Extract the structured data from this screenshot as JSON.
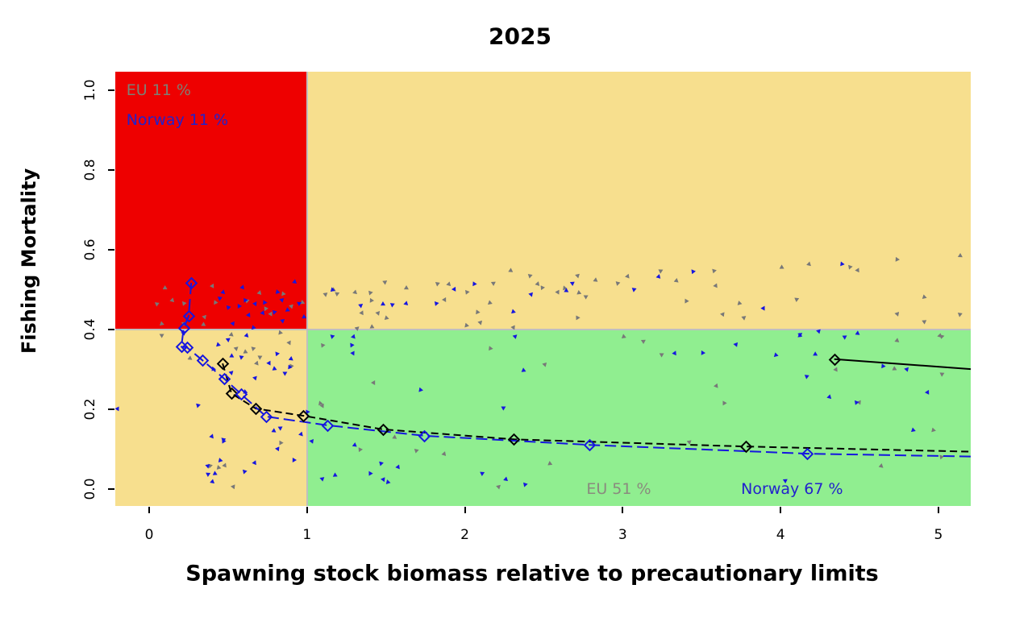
{
  "chart_title": "2025",
  "chart_data": {
    "type": "scatter",
    "title": "2025",
    "xlabel": "Spawning stock biomass relative to precautionary limits",
    "ylabel": "Fishing Mortality",
    "xlim": [
      -0.215,
      5.205
    ],
    "ylim": [
      -0.042,
      1.046
    ],
    "xticks": [
      0,
      1,
      2,
      3,
      4,
      5
    ],
    "xtick_labels": [
      "0",
      "1",
      "2",
      "3",
      "4",
      "5"
    ],
    "yticks": [
      0.0,
      0.2,
      0.4,
      0.6,
      0.8,
      1.0
    ],
    "ytick_labels": [
      "0.0",
      "0.2",
      "0.4",
      "0.6",
      "0.8",
      "1.0"
    ],
    "grid": false,
    "legend_position": "none",
    "thresholds": {
      "x": 1.0,
      "y": 0.4
    },
    "region_colors": {
      "top_left": "#EE0000",
      "top_right": "#F7DF8E",
      "bottom_left": "#F7DF8E",
      "bottom_right": "#90EE90",
      "boundary_line": "#BFBFBF"
    },
    "annotations": [
      {
        "text": "EU 11 %",
        "color": "#7F7F74",
        "x": -0.145,
        "y": 1.0,
        "anchor": "left"
      },
      {
        "text": "Norway 11 %",
        "color": "#2222CC",
        "x": -0.145,
        "y": 0.925,
        "anchor": "left"
      },
      {
        "text": "EU 51 %",
        "color": "#8A8A7E",
        "x": 2.77,
        "y": 0.0,
        "anchor": "left"
      },
      {
        "text": "Norway 67 %",
        "color": "#2222CC",
        "x": 3.75,
        "y": 0.0,
        "anchor": "left"
      }
    ],
    "series": [
      {
        "name": "EU simulations",
        "type": "points",
        "color": "#787878",
        "points": [
          [
            0.1,
            0.505
          ],
          [
            0.05,
            0.465
          ],
          [
            0.15,
            0.473
          ],
          [
            0.22,
            0.465
          ],
          [
            0.4,
            0.509
          ],
          [
            0.42,
            0.469
          ],
          [
            0.35,
            0.432
          ],
          [
            0.08,
            0.414
          ],
          [
            0.22,
            0.414
          ],
          [
            0.34,
            0.412
          ],
          [
            0.62,
            0.473
          ],
          [
            0.7,
            0.493
          ],
          [
            0.74,
            0.452
          ],
          [
            0.77,
            0.438
          ],
          [
            0.85,
            0.489
          ],
          [
            0.9,
            0.459
          ],
          [
            0.97,
            0.469
          ],
          [
            0.08,
            0.386
          ],
          [
            0.26,
            0.328
          ],
          [
            0.66,
            0.352
          ],
          [
            0.68,
            0.315
          ],
          [
            0.9,
            0.31
          ],
          [
            0.89,
            0.368
          ],
          [
            0.83,
            0.392
          ],
          [
            0.55,
            0.352
          ],
          [
            0.61,
            0.343
          ],
          [
            0.7,
            0.331
          ],
          [
            0.52,
            0.388
          ],
          [
            0.39,
            0.059
          ],
          [
            0.48,
            0.059
          ],
          [
            0.83,
            0.115
          ],
          [
            0.53,
            0.006
          ],
          [
            0.44,
            0.055
          ],
          [
            1.12,
            0.489
          ],
          [
            1.17,
            0.499
          ],
          [
            1.19,
            0.489
          ],
          [
            1.3,
            0.493
          ],
          [
            1.4,
            0.493
          ],
          [
            1.35,
            0.442
          ],
          [
            1.41,
            0.473
          ],
          [
            1.45,
            0.44
          ],
          [
            1.5,
            0.428
          ],
          [
            1.49,
            0.519
          ],
          [
            1.63,
            0.505
          ],
          [
            1.83,
            0.515
          ],
          [
            1.9,
            0.513
          ],
          [
            2.01,
            0.493
          ],
          [
            1.87,
            0.475
          ],
          [
            2.08,
            0.444
          ],
          [
            2.1,
            0.418
          ],
          [
            2.16,
            0.467
          ],
          [
            2.18,
            0.515
          ],
          [
            2.29,
            0.547
          ],
          [
            2.41,
            0.535
          ],
          [
            2.46,
            0.515
          ],
          [
            2.49,
            0.505
          ],
          [
            2.59,
            0.493
          ],
          [
            2.63,
            0.503
          ],
          [
            2.71,
            0.535
          ],
          [
            2.72,
            0.493
          ],
          [
            2.77,
            0.483
          ],
          [
            2.83,
            0.523
          ],
          [
            2.97,
            0.515
          ],
          [
            3.03,
            0.533
          ],
          [
            2.71,
            0.43
          ],
          [
            2.31,
            0.406
          ],
          [
            2.01,
            0.41
          ],
          [
            1.32,
            0.402
          ],
          [
            1.41,
            0.406
          ],
          [
            3.24,
            0.547
          ],
          [
            3.34,
            0.523
          ],
          [
            3.58,
            0.547
          ],
          [
            3.59,
            0.509
          ],
          [
            3.4,
            0.471
          ],
          [
            3.63,
            0.438
          ],
          [
            3.74,
            0.467
          ],
          [
            3.77,
            0.43
          ],
          [
            4.01,
            0.556
          ],
          [
            4.1,
            0.475
          ],
          [
            4.18,
            0.564
          ],
          [
            4.44,
            0.558
          ],
          [
            4.49,
            0.549
          ],
          [
            4.74,
            0.576
          ],
          [
            4.74,
            0.438
          ],
          [
            4.91,
            0.481
          ],
          [
            4.91,
            0.42
          ],
          [
            5.14,
            0.586
          ],
          [
            5.14,
            0.438
          ],
          [
            5.01,
            0.384
          ],
          [
            1.1,
            0.36
          ],
          [
            1.42,
            0.267
          ],
          [
            2.16,
            0.354
          ],
          [
            2.51,
            0.313
          ],
          [
            3.01,
            0.382
          ],
          [
            3.13,
            0.37
          ],
          [
            1.55,
            0.129
          ],
          [
            1.69,
            0.097
          ],
          [
            1.87,
            0.089
          ],
          [
            1.34,
            0.099
          ],
          [
            1.1,
            0.208
          ],
          [
            1.08,
            0.214
          ],
          [
            2.21,
            0.006
          ],
          [
            2.54,
            0.065
          ],
          [
            3.25,
            0.337
          ],
          [
            4.74,
            0.372
          ],
          [
            5.02,
            0.382
          ],
          [
            3.59,
            0.259
          ],
          [
            3.64,
            0.216
          ],
          [
            4.5,
            0.218
          ],
          [
            4.97,
            0.147
          ],
          [
            3.42,
            0.117
          ],
          [
            4.72,
            0.301
          ],
          [
            5.02,
            0.289
          ],
          [
            4.64,
            0.059
          ],
          [
            5.02,
            0.081
          ],
          [
            4.35,
            0.3
          ]
        ]
      },
      {
        "name": "Norway simulations",
        "type": "points",
        "color": "#1616DF",
        "points": [
          [
            0.59,
            0.505
          ],
          [
            0.61,
            0.473
          ],
          [
            0.67,
            0.465
          ],
          [
            0.81,
            0.495
          ],
          [
            0.84,
            0.475
          ],
          [
            0.88,
            0.449
          ],
          [
            0.95,
            0.465
          ],
          [
            0.92,
            0.519
          ],
          [
            0.79,
            0.444
          ],
          [
            0.72,
            0.442
          ],
          [
            0.57,
            0.459
          ],
          [
            0.53,
            0.414
          ],
          [
            0.66,
            0.404
          ],
          [
            0.84,
            0.422
          ],
          [
            0.98,
            0.432
          ],
          [
            0.45,
            0.479
          ],
          [
            0.47,
            0.493
          ],
          [
            0.5,
            0.455
          ],
          [
            0.63,
            0.437
          ],
          [
            0.73,
            0.469
          ],
          [
            0.22,
            0.392
          ],
          [
            0.44,
            0.362
          ],
          [
            0.5,
            0.374
          ],
          [
            0.52,
            0.333
          ],
          [
            0.58,
            0.331
          ],
          [
            0.62,
            0.386
          ],
          [
            0.81,
            0.339
          ],
          [
            0.76,
            0.315
          ],
          [
            0.89,
            0.305
          ],
          [
            0.67,
            0.279
          ],
          [
            0.61,
            0.244
          ],
          [
            0.83,
            0.154
          ],
          [
            0.79,
            0.145
          ],
          [
            0.47,
            0.123
          ],
          [
            0.96,
            0.137
          ],
          [
            1.0,
            0.194
          ],
          [
            -0.2,
            0.202
          ],
          [
            0.41,
            0.301
          ],
          [
            0.52,
            0.291
          ],
          [
            0.79,
            0.301
          ],
          [
            0.86,
            0.291
          ],
          [
            0.9,
            0.327
          ],
          [
            0.31,
            0.21
          ],
          [
            0.4,
            0.131
          ],
          [
            0.47,
            0.119
          ],
          [
            0.81,
            0.101
          ],
          [
            0.45,
            0.073
          ],
          [
            0.37,
            0.059
          ],
          [
            0.42,
            0.038
          ],
          [
            0.37,
            0.036
          ],
          [
            0.4,
            0.018
          ],
          [
            0.6,
            0.044
          ],
          [
            0.67,
            0.067
          ],
          [
            0.92,
            0.073
          ],
          [
            1.03,
            0.119
          ],
          [
            1.16,
            0.499
          ],
          [
            1.34,
            0.461
          ],
          [
            1.48,
            0.465
          ],
          [
            1.54,
            0.463
          ],
          [
            1.63,
            0.465
          ],
          [
            1.82,
            0.465
          ],
          [
            1.93,
            0.501
          ],
          [
            2.06,
            0.515
          ],
          [
            2.42,
            0.489
          ],
          [
            2.31,
            0.444
          ],
          [
            2.68,
            0.515
          ],
          [
            2.64,
            0.497
          ],
          [
            3.07,
            0.501
          ],
          [
            3.23,
            0.533
          ],
          [
            3.45,
            0.545
          ],
          [
            3.89,
            0.452
          ],
          [
            4.39,
            0.564
          ],
          [
            4.24,
            0.396
          ],
          [
            4.12,
            0.386
          ],
          [
            4.41,
            0.382
          ],
          [
            4.49,
            0.39
          ],
          [
            1.16,
            0.382
          ],
          [
            1.29,
            0.382
          ],
          [
            1.28,
            0.362
          ],
          [
            1.29,
            0.342
          ],
          [
            1.72,
            0.248
          ],
          [
            2.32,
            0.382
          ],
          [
            2.37,
            0.297
          ],
          [
            2.24,
            0.204
          ],
          [
            1.3,
            0.111
          ],
          [
            1.47,
            0.065
          ],
          [
            1.58,
            0.055
          ],
          [
            1.4,
            0.038
          ],
          [
            1.48,
            0.024
          ],
          [
            1.51,
            0.018
          ],
          [
            1.1,
            0.026
          ],
          [
            1.18,
            0.034
          ],
          [
            2.11,
            0.038
          ],
          [
            2.26,
            0.024
          ],
          [
            2.38,
            0.012
          ],
          [
            3.33,
            0.341
          ],
          [
            3.51,
            0.341
          ],
          [
            3.72,
            0.362
          ],
          [
            3.97,
            0.335
          ],
          [
            4.12,
            0.388
          ],
          [
            4.22,
            0.339
          ],
          [
            4.17,
            0.283
          ],
          [
            4.31,
            0.23
          ],
          [
            4.48,
            0.216
          ],
          [
            4.93,
            0.242
          ],
          [
            4.65,
            0.309
          ],
          [
            4.8,
            0.301
          ],
          [
            4.84,
            0.147
          ],
          [
            4.03,
            0.02
          ]
        ]
      },
      {
        "name": "EU trajectory",
        "type": "line",
        "color": "#000000",
        "dash": "9,5",
        "marker": "open-diamond",
        "points": [
          [
            0.465,
            0.315
          ],
          [
            0.521,
            0.24
          ],
          [
            0.675,
            0.202
          ],
          [
            0.976,
            0.184
          ],
          [
            1.48,
            0.15
          ],
          [
            2.31,
            0.125
          ],
          [
            3.78,
            0.107
          ],
          [
            5.205,
            0.094
          ]
        ],
        "marker_skip_last": true
      },
      {
        "name": "Norway trajectory",
        "type": "line",
        "color": "#1616DF",
        "dash": "14,6",
        "marker": "open-diamond",
        "points": [
          [
            0.266,
            0.517
          ],
          [
            0.25,
            0.434
          ],
          [
            0.218,
            0.404
          ],
          [
            0.204,
            0.357
          ],
          [
            0.24,
            0.355
          ],
          [
            0.337,
            0.323
          ],
          [
            0.475,
            0.277
          ],
          [
            0.583,
            0.238
          ],
          [
            0.741,
            0.182
          ],
          [
            1.13,
            0.16
          ],
          [
            1.74,
            0.134
          ],
          [
            2.79,
            0.111
          ],
          [
            4.17,
            0.089
          ],
          [
            5.205,
            0.082
          ]
        ],
        "marker_skip_last": true
      },
      {
        "name": "EU trajectory high-F",
        "type": "line",
        "color": "#000000",
        "dash": "",
        "marker": "open-diamond",
        "points": [
          [
            4.34,
            0.326
          ],
          [
            5.205,
            0.301
          ]
        ],
        "marker_skip_last": true
      }
    ]
  }
}
